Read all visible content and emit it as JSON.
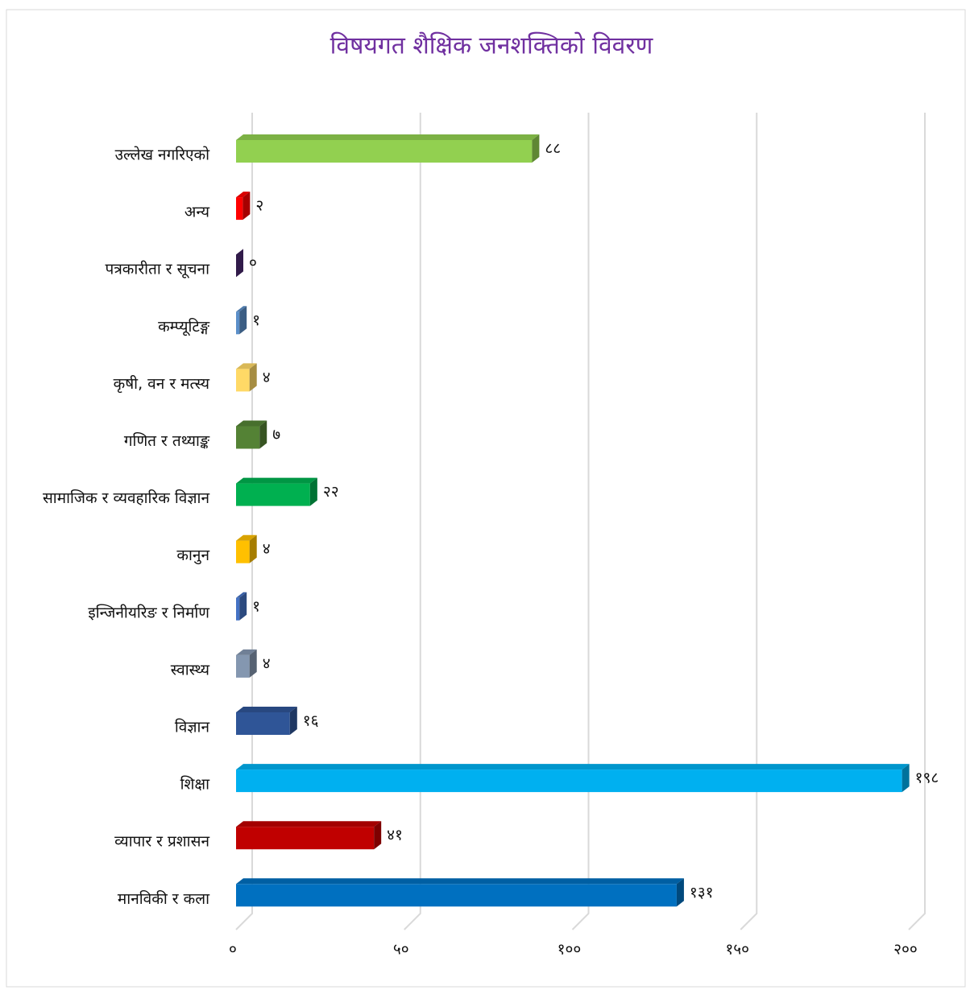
{
  "chart_data": {
    "type": "bar",
    "orientation": "horizontal",
    "title": "विषयगत शैक्षिक जनशक्तिको विवरण",
    "categories": [
      "उल्लेख नगरिएको",
      "अन्य",
      "पत्रकारीता र सूचना",
      "कम्प्यूटिङ्ग",
      "कृषी, वन र मत्स्य",
      "गणित र तथ्याङ्क",
      "सामाजिक र व्यवहारिक विज्ञान",
      "कानुन",
      "इन्जिनीयरिङ र निर्माण",
      "स्वास्थ्य",
      "विज्ञान",
      "शिक्षा",
      "व्यापार र प्रशासन",
      "मानविकी र कला"
    ],
    "values": [
      88,
      2,
      0,
      1,
      4,
      7,
      22,
      4,
      1,
      4,
      16,
      198,
      41,
      131
    ],
    "value_labels": [
      "८८",
      "२",
      "०",
      "१",
      "४",
      "७",
      "२२",
      "४",
      "१",
      "४",
      "१६",
      "१९८",
      "४१",
      "१३१"
    ],
    "colors": [
      "#92d050",
      "#ff0000",
      "#4b2a72",
      "#5b8fc9",
      "#ffd966",
      "#548235",
      "#00b050",
      "#ffc000",
      "#4472c4",
      "#8497b0",
      "#2f5597",
      "#00b0f0",
      "#c00000",
      "#0070c0"
    ],
    "xlim": [
      0,
      200
    ],
    "xticks": [
      {
        "value": 0,
        "label": "०"
      },
      {
        "value": 50,
        "label": "५०"
      },
      {
        "value": 100,
        "label": "१००"
      },
      {
        "value": 150,
        "label": "१५०"
      },
      {
        "value": 200,
        "label": "२००"
      }
    ],
    "grid": true
  }
}
